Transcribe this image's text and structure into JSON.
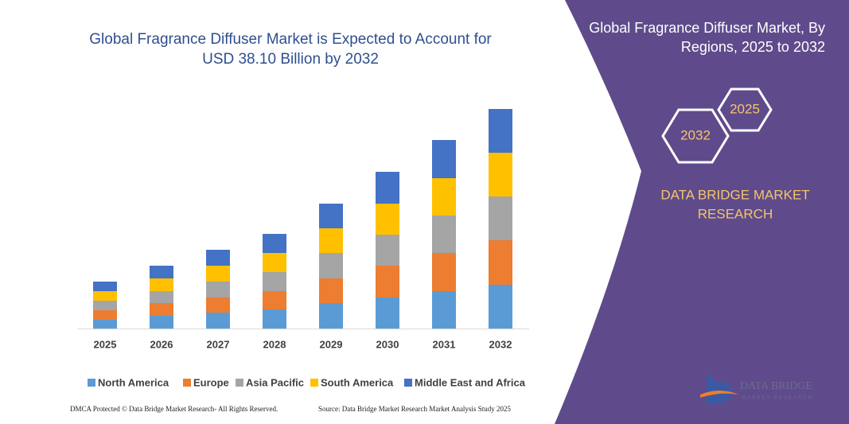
{
  "chart_data": {
    "type": "bar",
    "stacked": true,
    "title": [
      "Global Fragrance Diffuser Market is Expected to Account for",
      "USD 38.10 Billion by 2032"
    ],
    "categories": [
      "2025",
      "2026",
      "2027",
      "2028",
      "2029",
      "2030",
      "2031",
      "2032"
    ],
    "series": [
      {
        "name": "North America",
        "color": "#5b9bd5",
        "values": [
          11,
          16,
          20,
          24,
          32,
          39,
          47,
          55
        ]
      },
      {
        "name": "Europe",
        "color": "#ed7d31",
        "values": [
          12,
          16,
          19,
          23,
          31,
          40,
          48,
          56
        ]
      },
      {
        "name": "Asia Pacific",
        "color": "#a5a5a5",
        "values": [
          12,
          15,
          20,
          24,
          32,
          39,
          47,
          55
        ]
      },
      {
        "name": "South America",
        "color": "#ffc000",
        "values": [
          12,
          16,
          20,
          24,
          31,
          39,
          47,
          55
        ]
      },
      {
        "name": "Middle East and Africa",
        "color": "#4472c4",
        "values": [
          12,
          16,
          20,
          24,
          31,
          40,
          48,
          55
        ]
      }
    ],
    "ylim": [
      0,
      276
    ],
    "legend": "bottom"
  },
  "panel": {
    "title": [
      "Global Fragrance Diffuser Market, By",
      "Regions, 2025 to 2032"
    ],
    "hex_labels": [
      "2025",
      "2032"
    ],
    "brand": [
      "DATA BRIDGE MARKET",
      "RESEARCH"
    ],
    "logo": {
      "name": "DATA BRIDGE",
      "tagline": "MARKET RESEARCH"
    }
  },
  "footer": {
    "left": "DMCA Protected © Data Bridge Market Research- All Rights Reserved.",
    "right": "Source: Data Bridge Market Research Market Analysis Study 2025"
  }
}
